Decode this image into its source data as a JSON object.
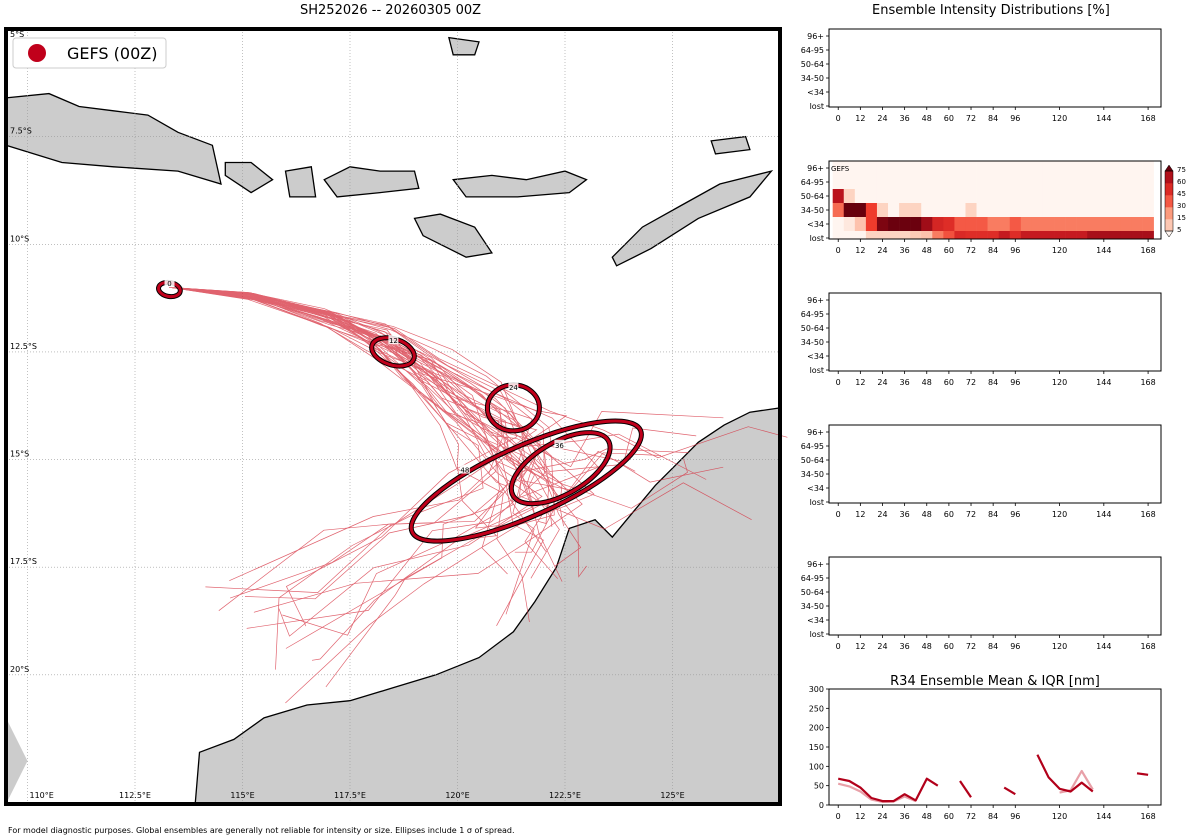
{
  "map": {
    "title": "SH252026 -- 20260305 00Z",
    "legend_label": "GEFS (00Z)",
    "legend_color": "#c0001b",
    "lat_labels": [
      "5°S",
      "7.5°S",
      "10°S",
      "12.5°S",
      "15°S",
      "17.5°S",
      "20°S"
    ],
    "lon_labels": [
      "110°E",
      "112.5°E",
      "115°E",
      "117.5°E",
      "120°E",
      "122.5°E",
      "125°E"
    ],
    "lon_range": [
      109.5,
      127.5
    ],
    "lat_range": [
      -23.0,
      -5.0
    ],
    "ellipse_hours": [
      "0",
      "12",
      "24",
      "36",
      "48"
    ],
    "footer": "For model diagnostic purposes. Global ensembles are generally not reliable for intensity or size. Ellipses include 1 σ of spread."
  },
  "chart_data": [
    {
      "type": "heatmap",
      "title": "Ensemble Intensity Distributions [%]",
      "panels": [
        {
          "label": "",
          "rows": [
            "96+",
            "64-95",
            "50-64",
            "34-50",
            "<34",
            "lost"
          ],
          "x_ticks": [
            "0",
            "12",
            "24",
            "36",
            "48",
            "60",
            "72",
            "84",
            "96",
            "120",
            "144",
            "168"
          ],
          "values": []
        },
        {
          "label": "GEFS",
          "rows": [
            "96+",
            "64-95",
            "50-64",
            "34-50",
            "<34",
            "lost"
          ],
          "x_ticks": [
            "0",
            "12",
            "24",
            "36",
            "48",
            "60",
            "72",
            "84",
            "96",
            "120",
            "144",
            "168"
          ],
          "time_bins": [
            0,
            6,
            12,
            18,
            24,
            30,
            36,
            42,
            48,
            54,
            60,
            66,
            72,
            78,
            84,
            90,
            96,
            102,
            108,
            114,
            120,
            126,
            132,
            138,
            144,
            150,
            156,
            162,
            168
          ],
          "values": {
            "96+": [
              0,
              0,
              0,
              0,
              0,
              0,
              0,
              0,
              0,
              0,
              0,
              0,
              0,
              0,
              0,
              0,
              0,
              0,
              0,
              0,
              0,
              0,
              0,
              0,
              0,
              0,
              0,
              0,
              0
            ],
            "64-95": [
              0,
              0,
              0,
              0,
              0,
              0,
              0,
              0,
              0,
              0,
              0,
              0,
              0,
              0,
              0,
              0,
              0,
              0,
              0,
              0,
              0,
              0,
              0,
              0,
              0,
              0,
              0,
              0,
              0
            ],
            "50-64": [
              66,
              10,
              0,
              0,
              0,
              0,
              0,
              0,
              0,
              0,
              0,
              0,
              0,
              0,
              0,
              0,
              0,
              0,
              0,
              0,
              0,
              0,
              0,
              0,
              0,
              0,
              0,
              0,
              0
            ],
            "34-50": [
              34,
              86,
              86,
              45,
              10,
              0,
              10,
              10,
              0,
              0,
              0,
              0,
              10,
              0,
              0,
              0,
              0,
              0,
              0,
              0,
              0,
              0,
              0,
              0,
              0,
              0,
              0,
              0,
              0
            ],
            "<34": [
              0,
              4,
              14,
              45,
              80,
              84,
              84,
              84,
              72,
              56,
              52,
              38,
              38,
              38,
              30,
              30,
              38,
              30,
              30,
              30,
              30,
              30,
              30,
              30,
              30,
              30,
              30,
              30,
              30
            ],
            "lost": [
              0,
              0,
              0,
              10,
              10,
              10,
              10,
              12,
              14,
              30,
              40,
              54,
              52,
              52,
              52,
              62,
              52,
              62,
              62,
              62,
              62,
              62,
              62,
              70,
              70,
              70,
              70,
              70,
              70
            ]
          },
          "colorbar_ticks": [
            "5",
            "15",
            "30",
            "45",
            "60",
            "75"
          ]
        },
        {
          "label": "",
          "rows": [
            "96+",
            "64-95",
            "50-64",
            "34-50",
            "<34",
            "lost"
          ],
          "x_ticks": [
            "0",
            "12",
            "24",
            "36",
            "48",
            "60",
            "72",
            "84",
            "96",
            "120",
            "144",
            "168"
          ],
          "values": []
        },
        {
          "label": "",
          "rows": [
            "96+",
            "64-95",
            "50-64",
            "34-50",
            "<34",
            "lost"
          ],
          "x_ticks": [
            "0",
            "12",
            "24",
            "36",
            "48",
            "60",
            "72",
            "84",
            "96",
            "120",
            "144",
            "168"
          ],
          "values": []
        },
        {
          "label": "",
          "rows": [
            "96+",
            "64-95",
            "50-64",
            "34-50",
            "<34",
            "lost"
          ],
          "x_ticks": [
            "0",
            "12",
            "24",
            "36",
            "48",
            "60",
            "72",
            "84",
            "96",
            "120",
            "144",
            "168"
          ],
          "values": []
        }
      ]
    },
    {
      "type": "line",
      "title": "R34 Ensemble Mean & IQR [nm]",
      "x_ticks": [
        "0",
        "12",
        "24",
        "36",
        "48",
        "60",
        "72",
        "84",
        "96",
        "120",
        "144",
        "168"
      ],
      "y_ticks": [
        "0",
        "50",
        "100",
        "150",
        "200",
        "250",
        "300"
      ],
      "ylim": [
        0,
        300
      ],
      "xlim": [
        -5,
        175
      ],
      "series": [
        {
          "name": "",
          "color": "#b2001a",
          "segments": [
            [
              [
                0,
                68
              ],
              [
                6,
                62
              ],
              [
                12,
                45
              ],
              [
                18,
                18
              ],
              [
                24,
                10
              ],
              [
                30,
                10
              ],
              [
                36,
                28
              ],
              [
                42,
                12
              ],
              [
                48,
                68
              ],
              [
                54,
                50
              ]
            ],
            [
              [
                66,
                62
              ],
              [
                72,
                20
              ]
            ],
            [
              [
                90,
                45
              ],
              [
                96,
                28
              ]
            ],
            [
              [
                108,
                130
              ],
              [
                114,
                72
              ],
              [
                120,
                42
              ],
              [
                126,
                35
              ],
              [
                132,
                58
              ],
              [
                138,
                35
              ]
            ],
            [
              [
                162,
                82
              ],
              [
                168,
                78
              ]
            ]
          ]
        },
        {
          "name": "",
          "color": "#e8a0a8",
          "segments": [
            [
              [
                0,
                55
              ],
              [
                6,
                48
              ],
              [
                12,
                35
              ],
              [
                18,
                14
              ],
              [
                24,
                8
              ],
              [
                30,
                9
              ],
              [
                36,
                22
              ],
              [
                42,
                10
              ]
            ],
            [
              [
                120,
                32
              ],
              [
                126,
                38
              ],
              [
                132,
                88
              ],
              [
                138,
                40
              ]
            ]
          ]
        }
      ]
    }
  ]
}
